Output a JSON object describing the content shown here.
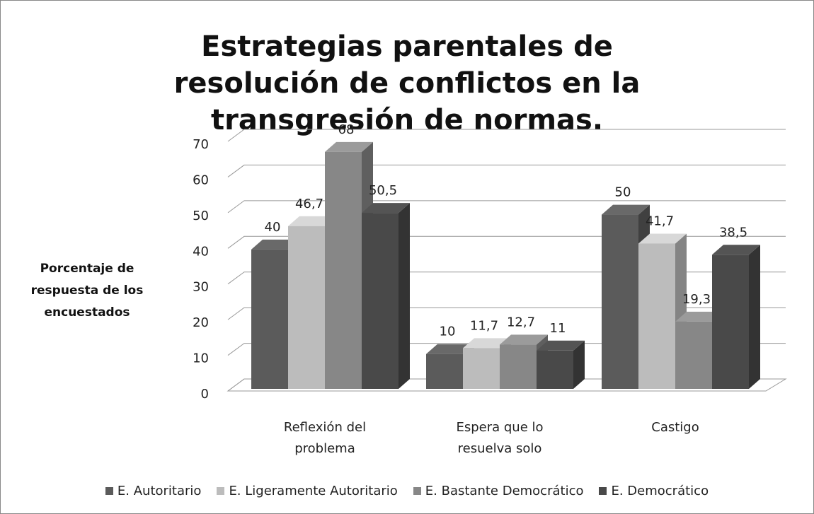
{
  "chart_data": {
    "type": "bar",
    "title": "Estrategias parentales de resolución de conflictos en la transgresión de normas.",
    "y_label": "Porcentaje de respuesta de los encuestados",
    "categories": [
      "Reflexión del problema",
      "Espera que lo resuelva solo",
      "Castigo"
    ],
    "series": [
      {
        "name": "E. Autoritario",
        "color": "#5b5b5b",
        "values": [
          40,
          10,
          50
        ],
        "value_labels": [
          "40",
          "10",
          "50"
        ]
      },
      {
        "name": "E. Ligeramente Autoritario",
        "color": "#bcbcbc",
        "values": [
          46.7,
          11.7,
          41.7
        ],
        "value_labels": [
          "46,7",
          "11,7",
          "41,7"
        ]
      },
      {
        "name": "E. Bastante Democrático",
        "color": "#878787",
        "values": [
          68,
          12.7,
          19.3
        ],
        "value_labels": [
          "68",
          "12,7",
          "19,3"
        ]
      },
      {
        "name": "E. Democrático",
        "color": "#494949",
        "values": [
          50.5,
          11,
          38.5
        ],
        "value_labels": [
          "50,5",
          "11",
          "38,5"
        ]
      }
    ],
    "ylim": [
      0,
      70
    ],
    "yticks": [
      0,
      10,
      20,
      30,
      40,
      50,
      60,
      70
    ],
    "grid": true,
    "legend": "bottom"
  }
}
